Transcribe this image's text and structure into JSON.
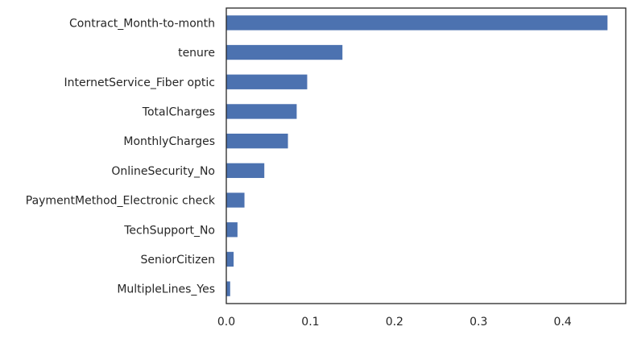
{
  "chart_data": {
    "type": "bar",
    "orientation": "horizontal",
    "categories": [
      "Contract_Month-to-month",
      "tenure",
      "InternetService_Fiber optic",
      "TotalCharges",
      "MonthlyCharges",
      "OnlineSecurity_No",
      "PaymentMethod_Electronic check",
      "TechSupport_No",
      "SeniorCitizen",
      "MultipleLines_Yes"
    ],
    "values": [
      0.4533,
      0.1381,
      0.0962,
      0.0837,
      0.0733,
      0.0452,
      0.0216,
      0.0133,
      0.0087,
      0.0046
    ],
    "xlim": [
      0,
      0.475
    ],
    "xticks": [
      0.0,
      0.1,
      0.2,
      0.3,
      0.4
    ],
    "xtick_labels": [
      "0.0",
      "0.1",
      "0.2",
      "0.3",
      "0.4"
    ],
    "title": "",
    "xlabel": "",
    "ylabel": "",
    "grid": false,
    "legend": "none",
    "colors": {
      "bar": "#4c72b0",
      "axes": "#262626",
      "text": "#262626",
      "background": "#ffffff"
    }
  }
}
